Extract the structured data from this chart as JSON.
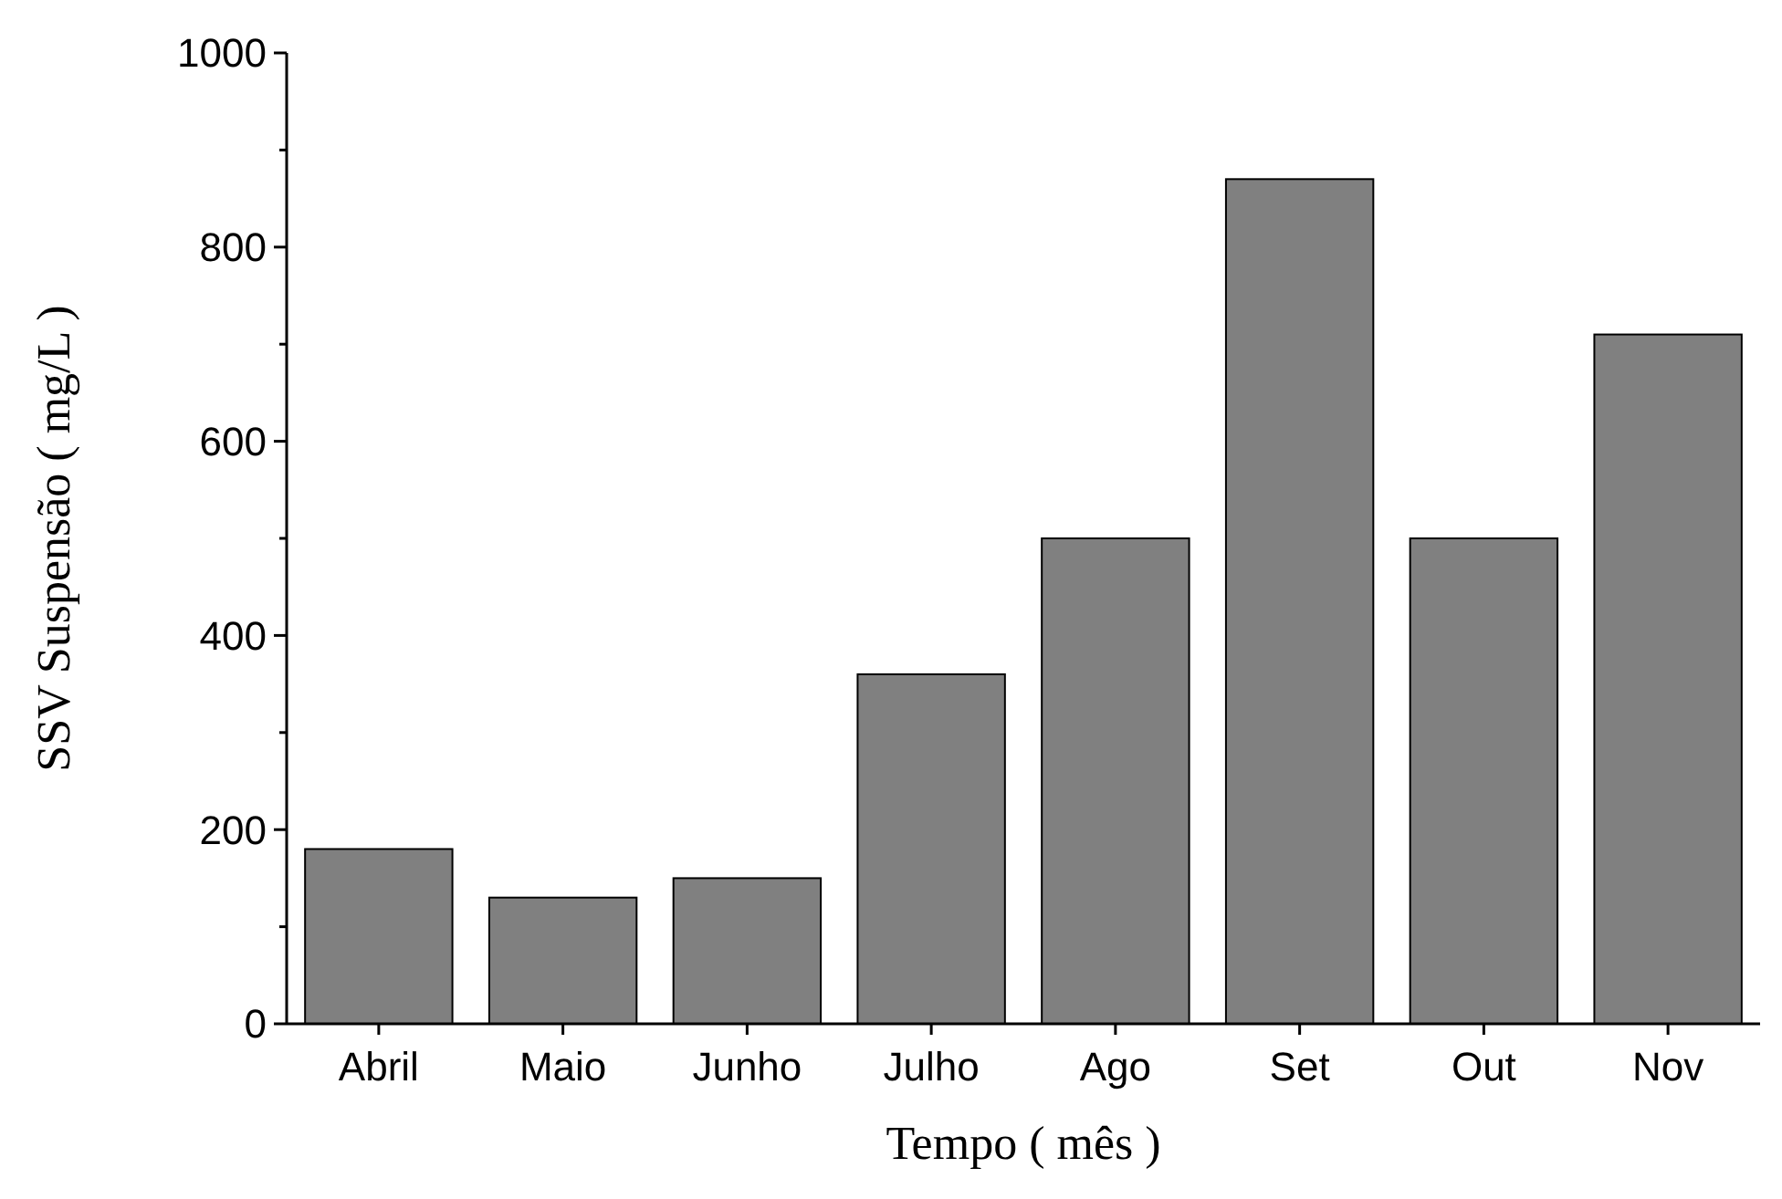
{
  "chart_data": {
    "type": "bar",
    "xlabel": "Tempo ( mês )",
    "ylabel": "SSV Suspensão ( mg/L )",
    "categories": [
      "Abril",
      "Maio",
      "Junho",
      "Julho",
      "Ago",
      "Set",
      "Out",
      "Nov"
    ],
    "values": [
      180,
      130,
      150,
      360,
      500,
      870,
      500,
      710
    ],
    "color": "#808080",
    "ylim": [
      0,
      1000
    ],
    "yticks": [
      0,
      {
        "value": 100,
        "label": null
      },
      200,
      {
        "value": 300,
        "label": null
      },
      400,
      {
        "value": 500,
        "label": null
      },
      600,
      {
        "value": 700,
        "label": null
      },
      800,
      {
        "value": 900,
        "label": null
      },
      1000
    ],
    "grid": false
  }
}
